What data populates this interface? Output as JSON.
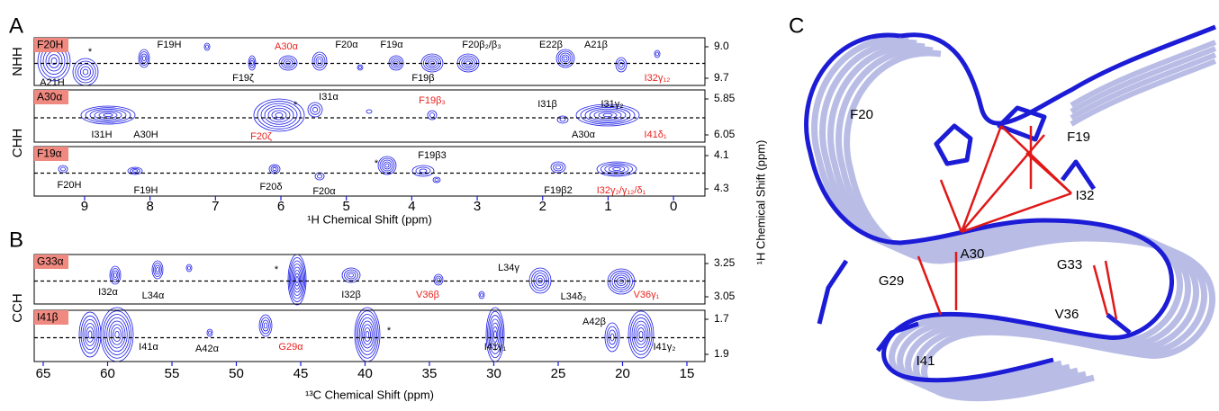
{
  "figure": {
    "panels": [
      {
        "letter": "A",
        "row_labels": [
          "NHH",
          "CHH"
        ],
        "x_axis_label": "¹H Chemical Shift (ppm)",
        "xlim": [
          9.77,
          -0.48
        ],
        "xticks": [
          9,
          8,
          7,
          6,
          5,
          4,
          3,
          2,
          1,
          0
        ],
        "strips": [
          {
            "tag": "F20H",
            "yticks": [
              "9.0",
              "9.7"
            ],
            "labels": [
              {
                "text": "*"
              },
              {
                "text": "F19H"
              },
              {
                "text": "A30α",
                "color": "#e8231f"
              },
              {
                "text": "F20α"
              },
              {
                "text": "F19α"
              },
              {
                "text": "F20β₂/β₃"
              },
              {
                "text": "E22β"
              },
              {
                "text": "A21β"
              },
              {
                "text": "A21H"
              },
              {
                "text": "F19ζ"
              },
              {
                "text": "F19β"
              },
              {
                "text": "I32γ₁₂",
                "color": "#e8231f"
              }
            ]
          },
          {
            "tag": "A30α",
            "yticks": [
              "5.85",
              "6.05"
            ],
            "labels": [
              {
                "text": "*"
              },
              {
                "text": "I31α"
              },
              {
                "text": "F19β₃",
                "color": "#e8231f"
              },
              {
                "text": "I31β"
              },
              {
                "text": "I31γ₂"
              },
              {
                "text": "I31H"
              },
              {
                "text": "A30H"
              },
              {
                "text": "F20ζ",
                "color": "#e8231f"
              },
              {
                "text": "A30α"
              },
              {
                "text": "I41δ₁",
                "color": "#e8231f"
              }
            ]
          },
          {
            "tag": "F19α",
            "yticks": [
              "4.1",
              "4.3"
            ],
            "labels": [
              {
                "text": "*"
              },
              {
                "text": "F19β3"
              },
              {
                "text": "F20H"
              },
              {
                "text": "F19H"
              },
              {
                "text": "F20δ"
              },
              {
                "text": "F20α"
              },
              {
                "text": "F19β2"
              },
              {
                "text": "I32γ₂/γ₁₂/δ₁",
                "color": "#e8231f"
              }
            ]
          }
        ]
      },
      {
        "letter": "B",
        "row_labels": [
          "CCH"
        ],
        "x_axis_label": "¹³C Chemical Shift (ppm)",
        "xlim": [
          65.7,
          13.6
        ],
        "xticks": [
          65,
          60,
          55,
          50,
          45,
          40,
          35,
          30,
          25,
          20,
          15
        ],
        "strips": [
          {
            "tag": "G33α",
            "yticks": [
              "3.25",
              "3.05"
            ],
            "labels": [
              {
                "text": "*"
              },
              {
                "text": "I32α"
              },
              {
                "text": "L34α"
              },
              {
                "text": "I32β"
              },
              {
                "text": "V36β",
                "color": "#e8231f"
              },
              {
                "text": "L34γ"
              },
              {
                "text": "L34δ₂"
              },
              {
                "text": "V36γ₁",
                "color": "#e8231f"
              }
            ]
          },
          {
            "tag": "I41β",
            "yticks": [
              "1.7",
              "1.9"
            ],
            "labels": [
              {
                "text": "*"
              },
              {
                "text": "I41α"
              },
              {
                "text": "A42α"
              },
              {
                "text": "G29α",
                "color": "#e8231f"
              },
              {
                "text": "I41γ₁"
              },
              {
                "text": "A42β"
              },
              {
                "text": "I41γ₂"
              }
            ]
          }
        ]
      }
    ],
    "y_axis_label": "¹H Chemical Shift (ppm)",
    "structure": {
      "letter": "C",
      "residues": [
        "F20",
        "F19",
        "I32",
        "A30",
        "G33",
        "G29",
        "V36",
        "I41"
      ]
    }
  }
}
